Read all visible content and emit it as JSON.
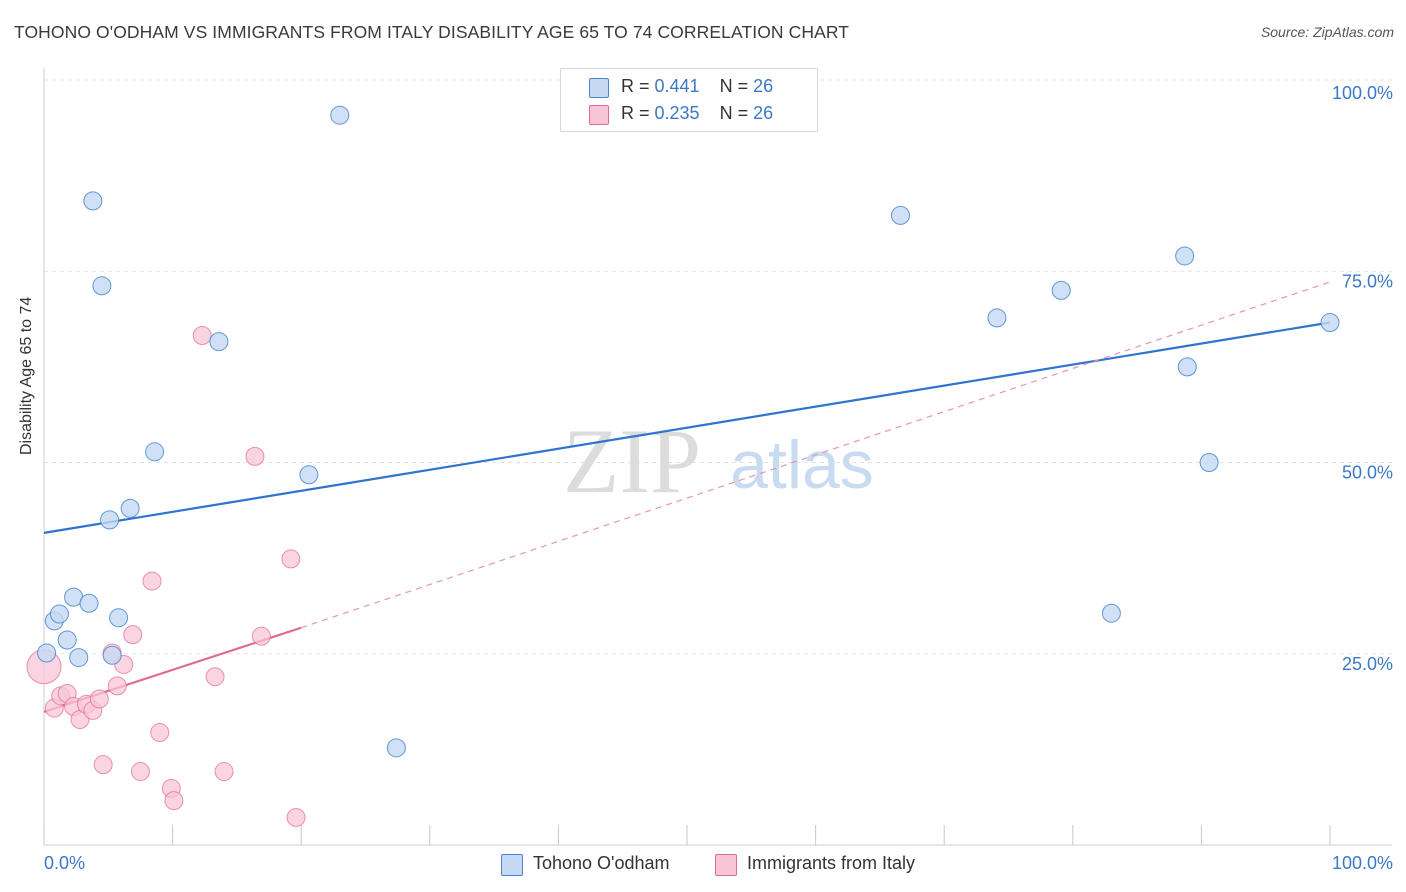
{
  "title": "TOHONO O'ODHAM VS IMMIGRANTS FROM ITALY DISABILITY AGE 65 TO 74 CORRELATION CHART",
  "source": "Source: ZipAtlas.com",
  "watermark": {
    "zip": "ZIP",
    "atlas": "atlas"
  },
  "legend": {
    "items": [
      {
        "r_label": "R = ",
        "r_value": "0.441",
        "n_label": "N = ",
        "n_value": "26"
      },
      {
        "r_label": "R = ",
        "r_value": "0.235",
        "n_label": "N = ",
        "n_value": "26"
      }
    ]
  },
  "colors": {
    "series1": "#4a86d4",
    "series1_fill": "#c5d9f3",
    "series2": "#e06a93",
    "series2_fill": "#f8c5d6",
    "grid": "#e2e2e2",
    "axis_text": "#3b78c8"
  },
  "chart_data": {
    "type": "scatter",
    "title": "TOHONO O'ODHAM VS IMMIGRANTS FROM ITALY DISABILITY AGE 65 TO 74 CORRELATION CHART",
    "xlabel": "",
    "ylabel": "Disability Age 65 to 74",
    "xlim": [
      0,
      100
    ],
    "ylim": [
      0,
      100
    ],
    "x_tick_labels": [
      "0.0%",
      "100.0%"
    ],
    "y_tick_labels": [
      "25.0%",
      "50.0%",
      "75.0%",
      "100.0%"
    ],
    "y_ticks": [
      25,
      50,
      75,
      100
    ],
    "grid": true,
    "series": [
      {
        "name": "Tohono O'odham",
        "r": 0.441,
        "n": 26,
        "points": [
          [
            0.2,
            25.1
          ],
          [
            0.8,
            29.3
          ],
          [
            1.2,
            30.2
          ],
          [
            1.8,
            26.8
          ],
          [
            2.3,
            32.4
          ],
          [
            2.7,
            24.5
          ],
          [
            3.5,
            31.6
          ],
          [
            3.8,
            84.2
          ],
          [
            4.5,
            73.1
          ],
          [
            5.1,
            42.5
          ],
          [
            5.3,
            24.8
          ],
          [
            5.8,
            29.7
          ],
          [
            6.7,
            44.0
          ],
          [
            8.6,
            51.4
          ],
          [
            13.6,
            65.8
          ],
          [
            20.6,
            48.4
          ],
          [
            23.0,
            95.4
          ],
          [
            27.4,
            12.7
          ],
          [
            66.6,
            82.3
          ],
          [
            74.1,
            68.9
          ],
          [
            79.1,
            72.5
          ],
          [
            83.0,
            30.3
          ],
          [
            88.7,
            77.0
          ],
          [
            88.9,
            62.5
          ],
          [
            90.6,
            50.0
          ],
          [
            100.0,
            68.3
          ]
        ],
        "trend": {
          "x": [
            0,
            100
          ],
          "y": [
            40.8,
            68.3
          ]
        }
      },
      {
        "name": "Immigrants from Italy",
        "r": 0.235,
        "n": 26,
        "points": [
          [
            0.0,
            23.3
          ],
          [
            0.8,
            17.9
          ],
          [
            1.3,
            19.5
          ],
          [
            1.8,
            19.8
          ],
          [
            2.3,
            18.1
          ],
          [
            2.8,
            16.4
          ],
          [
            3.3,
            18.4
          ],
          [
            3.8,
            17.6
          ],
          [
            4.3,
            19.1
          ],
          [
            4.6,
            10.5
          ],
          [
            5.3,
            25.1
          ],
          [
            5.7,
            20.8
          ],
          [
            6.2,
            23.6
          ],
          [
            6.9,
            27.5
          ],
          [
            7.5,
            9.6
          ],
          [
            8.4,
            34.5
          ],
          [
            9.0,
            14.7
          ],
          [
            9.9,
            7.4
          ],
          [
            10.1,
            5.8
          ],
          [
            12.3,
            66.6
          ],
          [
            13.3,
            22.0
          ],
          [
            14.0,
            9.6
          ],
          [
            16.4,
            50.8
          ],
          [
            16.9,
            27.3
          ],
          [
            19.2,
            37.4
          ],
          [
            19.6,
            3.6
          ]
        ],
        "trend": {
          "x": [
            0,
            20
          ],
          "y": [
            17.4,
            28.4
          ]
        },
        "trend_extended": {
          "x": [
            20,
            100
          ],
          "y": [
            28.4,
            73.6
          ]
        }
      }
    ]
  }
}
